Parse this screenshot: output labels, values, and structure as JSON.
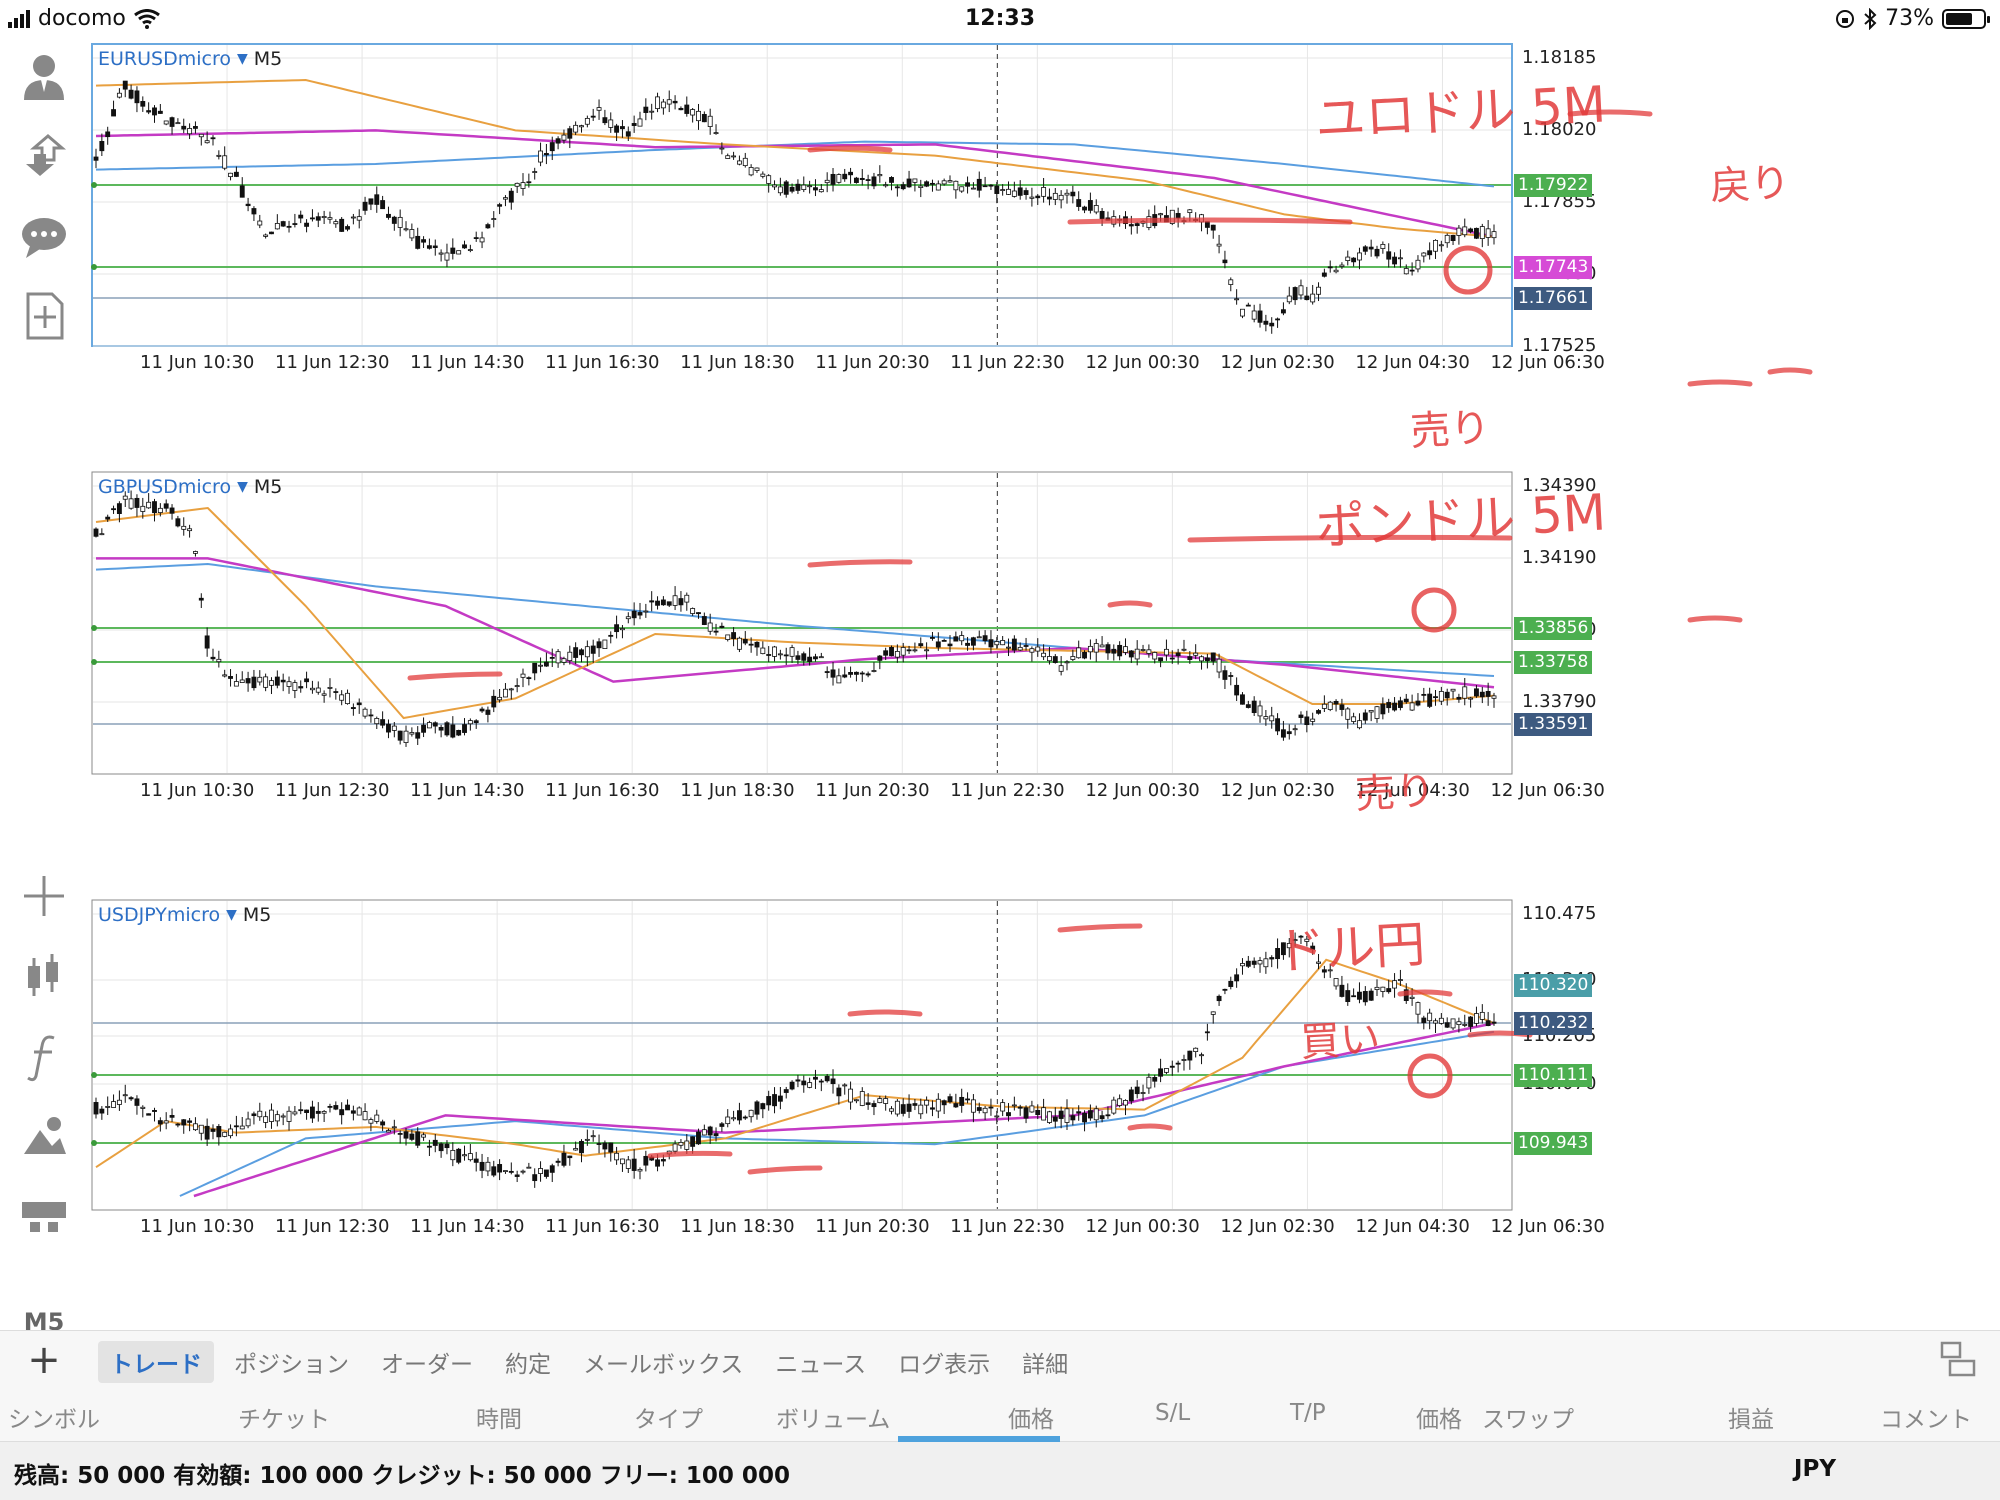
{
  "statusbar": {
    "carrier": "docomo",
    "time": "12:33",
    "battery": "73%",
    "battery_level": 0.73
  },
  "charts": [
    {
      "symbol": "EURUSDmicro",
      "timeframe": "M5",
      "price_ticks": [
        "1.18185",
        "1.18020",
        "1.17855",
        "1.17690",
        "1.17525"
      ],
      "price_badges": [
        {
          "value": "1.17922",
          "color": "#4caf50"
        },
        {
          "value": "1.17743",
          "color": "#d64bd6"
        },
        {
          "value": "1.17661",
          "color": "#3d5a80"
        }
      ],
      "time_labels": [
        "11 Jun 10:30",
        "11 Jun 12:30",
        "11 Jun 14:30",
        "11 Jun 16:30",
        "11 Jun 18:30",
        "11 Jun 20:30",
        "11 Jun 22:30",
        "12 Jun 00:30",
        "12 Jun 02:30",
        "12 Jun 04:30",
        "12 Jun 06:30"
      ],
      "annotations": {
        "title": "ユロドル 5M",
        "side": "売り",
        "note": "戻り"
      }
    },
    {
      "symbol": "GBPUSDmicro",
      "timeframe": "M5",
      "price_ticks": [
        "1.34390",
        "1.34190",
        "1.33990",
        "1.33790"
      ],
      "price_badges": [
        {
          "value": "1.33856",
          "color": "#4caf50"
        },
        {
          "value": "1.33758",
          "color": "#4caf50"
        },
        {
          "value": "1.33591",
          "color": "#3d5a80"
        }
      ],
      "time_labels": [
        "11 Jun 10:30",
        "11 Jun 12:30",
        "11 Jun 14:30",
        "11 Jun 16:30",
        "11 Jun 18:30",
        "11 Jun 20:30",
        "11 Jun 22:30",
        "12 Jun 00:30",
        "12 Jun 02:30",
        "12 Jun 04:30",
        "12 Jun 06:30"
      ],
      "annotations": {
        "title": "ポンドル 5M",
        "side": "売り"
      }
    },
    {
      "symbol": "USDJPYmicro",
      "timeframe": "M5",
      "price_ticks": [
        "110.475",
        "110.340",
        "110.205",
        "110.070"
      ],
      "price_badges": [
        {
          "value": "110.320",
          "color": "#4a9ea8"
        },
        {
          "value": "110.232",
          "color": "#3d5a80"
        },
        {
          "value": "110.111",
          "color": "#4caf50"
        },
        {
          "value": "109.943",
          "color": "#4caf50"
        }
      ],
      "time_labels": [
        "11 Jun 10:30",
        "11 Jun 12:30",
        "11 Jun 14:30",
        "11 Jun 16:30",
        "11 Jun 18:30",
        "11 Jun 20:30",
        "11 Jun 22:30",
        "12 Jun 00:30",
        "12 Jun 02:30",
        "12 Jun 04:30",
        "12 Jun 06:30"
      ],
      "annotations": {
        "title": "ドル円",
        "side": "買い"
      }
    }
  ],
  "left_toolbar": {
    "icons": [
      "account-icon",
      "trade-arrows-icon",
      "chat-icon",
      "new-order-icon",
      "crosshair-icon",
      "candles-icon",
      "indicator-f-icon",
      "objects-icon",
      "timeframes-icon"
    ],
    "timeframe": "M5"
  },
  "bottom_tabs": {
    "add": "+",
    "tabs": [
      "トレード",
      "ポジション",
      "オーダー",
      "約定",
      "メールボックス",
      "ニュース",
      "ログ表示",
      "詳細"
    ],
    "active": "トレード"
  },
  "columns": [
    "シンボル",
    "チケット",
    "時間",
    "タイプ",
    "ボリューム",
    "価格",
    "S/L",
    "T/P",
    "価格",
    "スワップ",
    "損益",
    "コメント"
  ],
  "account": {
    "summary": "残高: 50 000 有効額: 100 000 クレジット: 50 000 フリー: 100 000",
    "currency": "JPY"
  }
}
